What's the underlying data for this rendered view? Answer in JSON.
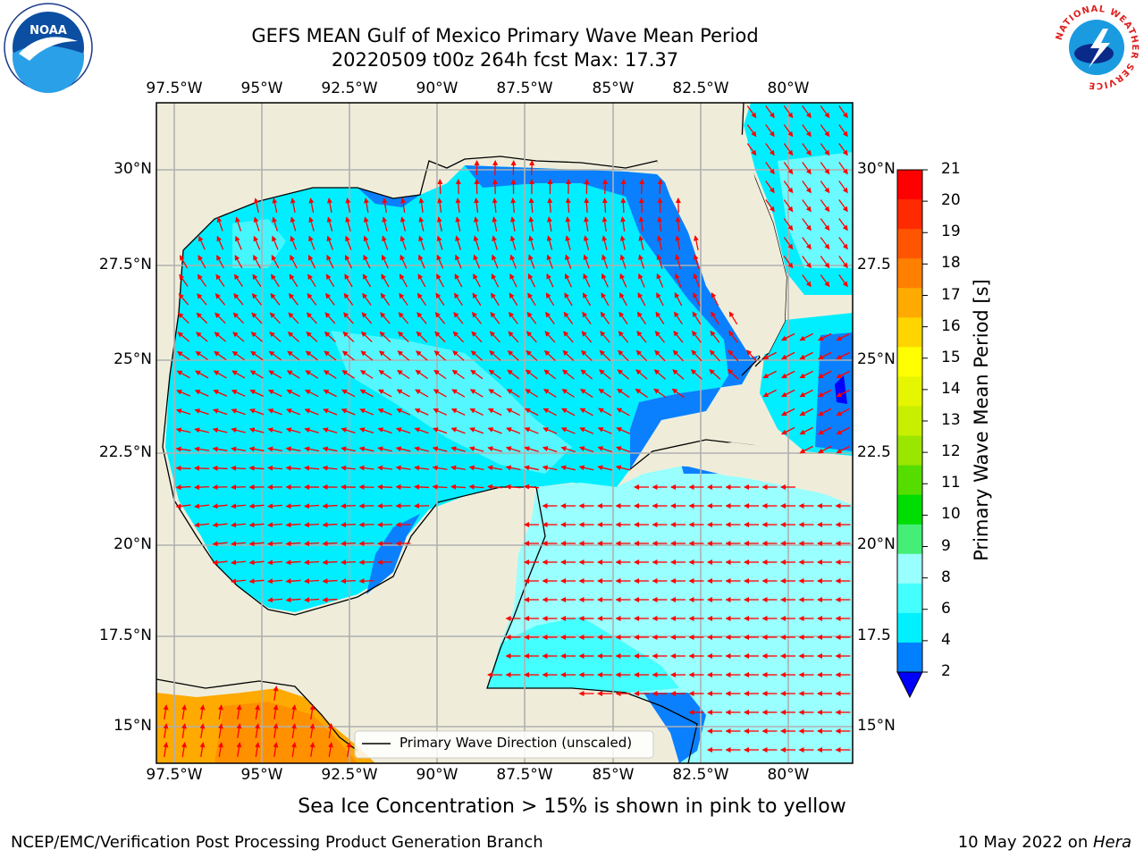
{
  "title_line1": "GEFS MEAN Gulf of Mexico Primary Wave Mean Period",
  "title_line2": "20220509 t00z 264h fcst   Max: 17.37",
  "lon_ticks": [
    "97.5°W",
    "95°W",
    "92.5°W",
    "90°W",
    "87.5°W",
    "85°W",
    "82.5°W",
    "80°W"
  ],
  "lat_ticks": [
    "30°N",
    "27.5°N",
    "25°N",
    "22.5°N",
    "20°N",
    "17.5°N",
    "15°N"
  ],
  "lat_ticks_right": [
    "30°N",
    "27.5",
    "25°N",
    "22.5",
    "20°N",
    "17.5",
    "15°N"
  ],
  "legend_label": "Primary Wave Direction (unscaled)",
  "colorbar": {
    "label": "Primary Wave Mean Period [s]",
    "ticks": [
      "21",
      "20",
      "19",
      "18",
      "17",
      "16",
      "15",
      "14",
      "13",
      "12",
      "11",
      "10",
      "9",
      "8",
      "6",
      "4",
      "2"
    ],
    "colors": [
      "#ff0000",
      "#ff2a00",
      "#ff5500",
      "#ff8000",
      "#ffaa00",
      "#ffd500",
      "#ffff00",
      "#e6f500",
      "#c8ee00",
      "#9ae600",
      "#55dd00",
      "#00dd00",
      "#44ee77",
      "#99ffff",
      "#44ffff",
      "#00f0ff",
      "#0080ff"
    ],
    "under_color": "#0000ff"
  },
  "ice_note": "Sea Ice Concentration > 15% is shown in pink to yellow",
  "footer_left": "NCEP/EMC/Verification Post Processing Product Generation Branch",
  "footer_right_date": "10 May 2022 on ",
  "footer_right_host": "Hera",
  "logos": {
    "left": "NOAA",
    "right_ring": "NATIONAL WEATHER SERVICE"
  },
  "colors": {
    "land": "#efedda",
    "sea_main": "#00eeff",
    "sea_light": "#99ffff",
    "sea_deep": "#0a80ff",
    "sea_warm": "#ffaa00",
    "arrow": "#ff0000"
  }
}
